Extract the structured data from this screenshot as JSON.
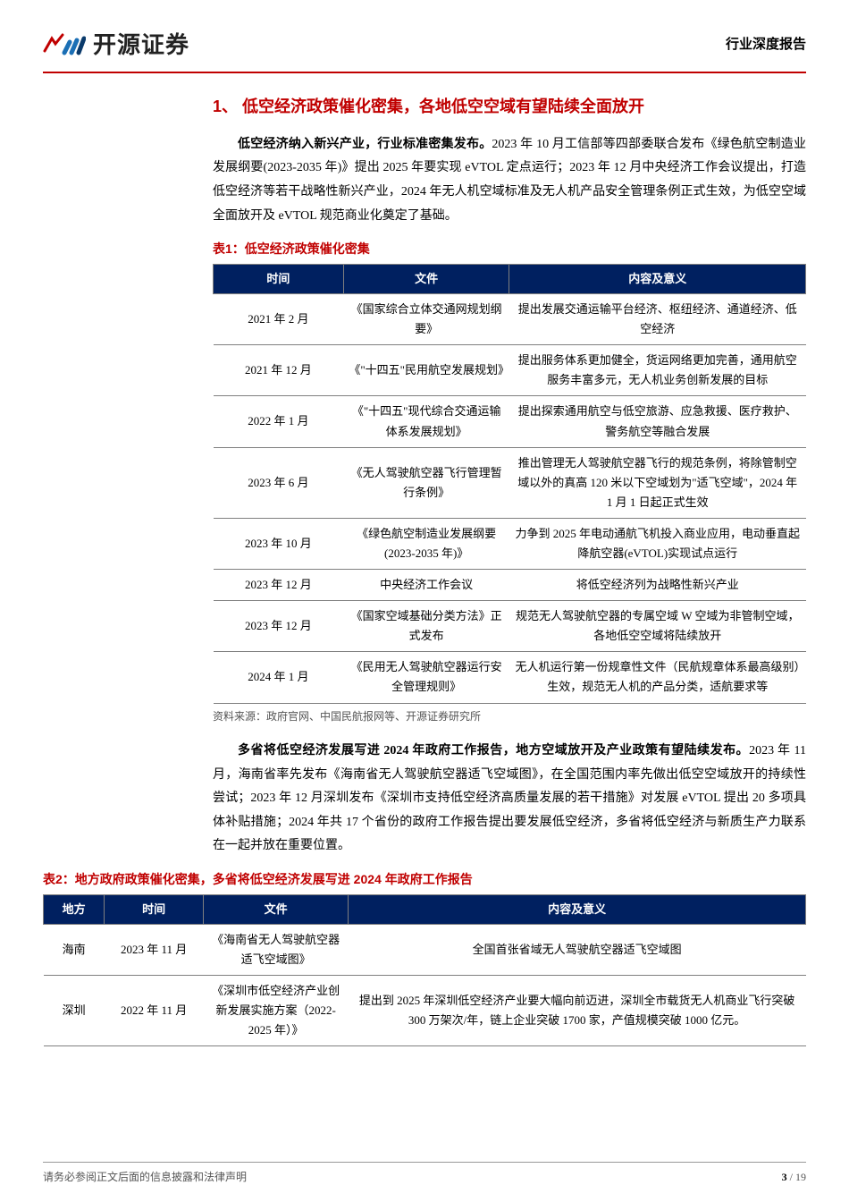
{
  "header": {
    "company": "开源证券",
    "reportType": "行业深度报告"
  },
  "section": {
    "number": "1、",
    "title": "低空经济政策催化密集，各地低空空域有望陆续全面放开"
  },
  "para1": {
    "lead": "低空经济纳入新兴产业，行业标准密集发布。",
    "body": "2023 年 10 月工信部等四部委联合发布《绿色航空制造业发展纲要(2023-2035 年)》提出 2025 年要实现 eVTOL 定点运行；2023 年 12 月中央经济工作会议提出，打造低空经济等若干战略性新兴产业，2024 年无人机空域标准及无人机产品安全管理条例正式生效，为低空空域全面放开及 eVTOL 规范商业化奠定了基础。"
  },
  "table1": {
    "title": "表1：低空经济政策催化密集",
    "columns": [
      "时间",
      "文件",
      "内容及意义"
    ],
    "rows": [
      [
        "2021 年 2 月",
        "《国家综合立体交通网规划纲要》",
        "提出发展交通运输平台经济、枢纽经济、通道经济、低空经济"
      ],
      [
        "2021 年 12 月",
        "《\"十四五\"民用航空发展规划》",
        "提出服务体系更加健全，货运网络更加完善，通用航空服务丰富多元，无人机业务创新发展的目标"
      ],
      [
        "2022 年 1 月",
        "《\"十四五\"现代综合交通运输体系发展规划》",
        "提出探索通用航空与低空旅游、应急救援、医疗救护、警务航空等融合发展"
      ],
      [
        "2023 年 6 月",
        "《无人驾驶航空器飞行管理暂行条例》",
        "推出管理无人驾驶航空器飞行的规范条例，将除管制空域以外的真高 120 米以下空域划为\"适飞空域\"，2024 年 1 月 1 日起正式生效"
      ],
      [
        "2023 年 10 月",
        "《绿色航空制造业发展纲要(2023-2035 年)》",
        "力争到 2025 年电动通航飞机投入商业应用，电动垂直起降航空器(eVTOL)实现试点运行"
      ],
      [
        "2023 年 12 月",
        "中央经济工作会议",
        "将低空经济列为战略性新兴产业"
      ],
      [
        "2023 年 12 月",
        "《国家空域基础分类方法》正式发布",
        "规范无人驾驶航空器的专属空域 W 空域为非管制空域，各地低空空域将陆续放开"
      ],
      [
        "2024 年 1 月",
        "《民用无人驾驶航空器运行安全管理规则》",
        "无人机运行第一份规章性文件（民航规章体系最高级别）生效，规范无人机的产品分类，适航要求等"
      ]
    ],
    "source": "资料来源：政府官网、中国民航报网等、开源证券研究所"
  },
  "para2": {
    "lead": "多省将低空经济发展写进 2024 年政府工作报告，地方空域放开及产业政策有望陆续发布。",
    "body": "2023 年 11 月，海南省率先发布《海南省无人驾驶航空器适飞空域图》，在全国范围内率先做出低空空域放开的持续性尝试；2023 年 12 月深圳发布《深圳市支持低空经济高质量发展的若干措施》对发展 eVTOL 提出 20 多项具体补贴措施；2024 年共 17 个省份的政府工作报告提出要发展低空经济，多省将低空经济与新质生产力联系在一起并放在重要位置。"
  },
  "table2": {
    "title": "表2：地方政府政策催化密集，多省将低空经济发展写进 2024 年政府工作报告",
    "columns": [
      "地方",
      "时间",
      "文件",
      "内容及意义"
    ],
    "rows": [
      [
        "海南",
        "2023 年 11 月",
        "《海南省无人驾驶航空器适飞空域图》",
        "全国首张省域无人驾驶航空器适飞空域图"
      ],
      [
        "深圳",
        "2022 年 11 月",
        "《深圳市低空经济产业创新发展实施方案（2022-2025 年）》",
        "提出到 2025 年深圳低空经济产业要大幅向前迈进，深圳全市载货无人机商业飞行突破 300 万架次/年，链上企业突破 1700 家，产值规模突破 1000 亿元。"
      ]
    ]
  },
  "footer": {
    "disclaimer": "请务必参阅正文后面的信息披露和法律声明",
    "page": "3",
    "total": "19"
  }
}
